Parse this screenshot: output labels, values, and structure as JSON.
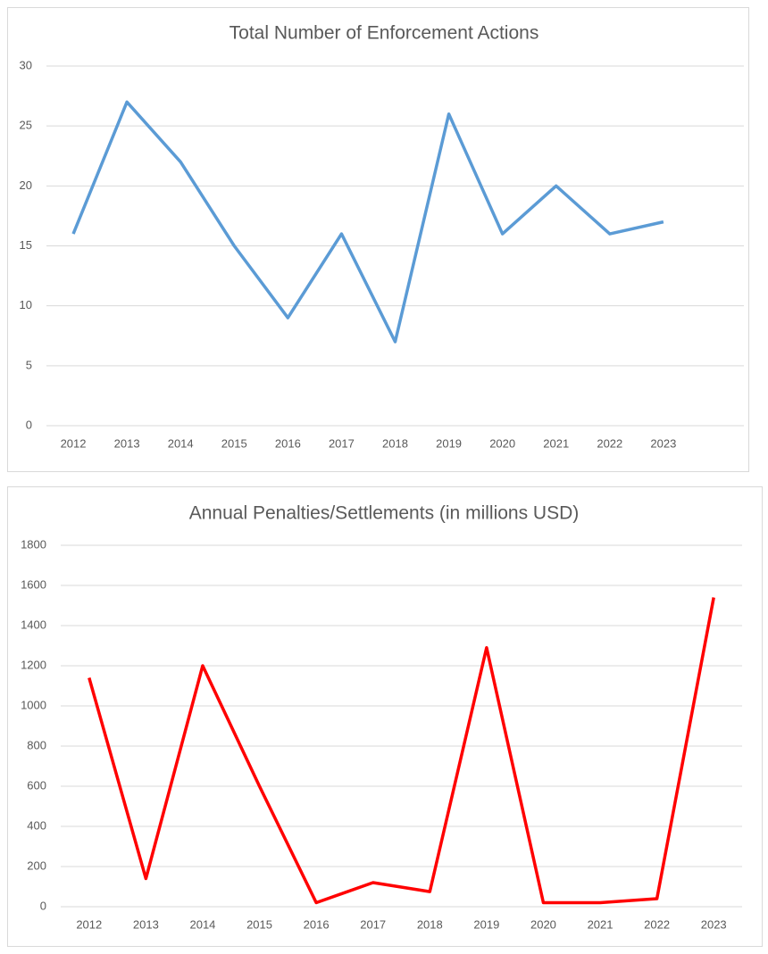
{
  "chart_data": [
    {
      "type": "line",
      "title": "Total Number of Enforcement Actions",
      "categories": [
        "2012",
        "2013",
        "2014",
        "2015",
        "2016",
        "2017",
        "2018",
        "2019",
        "2020",
        "2021",
        "2022",
        "2023",
        null
      ],
      "values": [
        16,
        27,
        22,
        15,
        9,
        16,
        7,
        26,
        16,
        20,
        16,
        17,
        null
      ],
      "color": "#5b9bd5",
      "ylim": [
        0,
        30
      ],
      "yticks": [
        0,
        5,
        10,
        15,
        20,
        25,
        30
      ],
      "grid": true
    },
    {
      "type": "line",
      "title": "Annual Penalties/Settlements (in millions USD)",
      "categories": [
        "2012",
        "2013",
        "2014",
        "2015",
        "2016",
        "2017",
        "2018",
        "2019",
        "2020",
        "2021",
        "2022",
        "2023"
      ],
      "values": [
        1140,
        140,
        1200,
        600,
        20,
        120,
        75,
        1290,
        20,
        20,
        40,
        1540
      ],
      "color": "#ff0000",
      "ylim": [
        0,
        1800
      ],
      "yticks": [
        0,
        200,
        400,
        600,
        800,
        1000,
        1200,
        1400,
        1600,
        1800
      ],
      "grid": true
    }
  ]
}
